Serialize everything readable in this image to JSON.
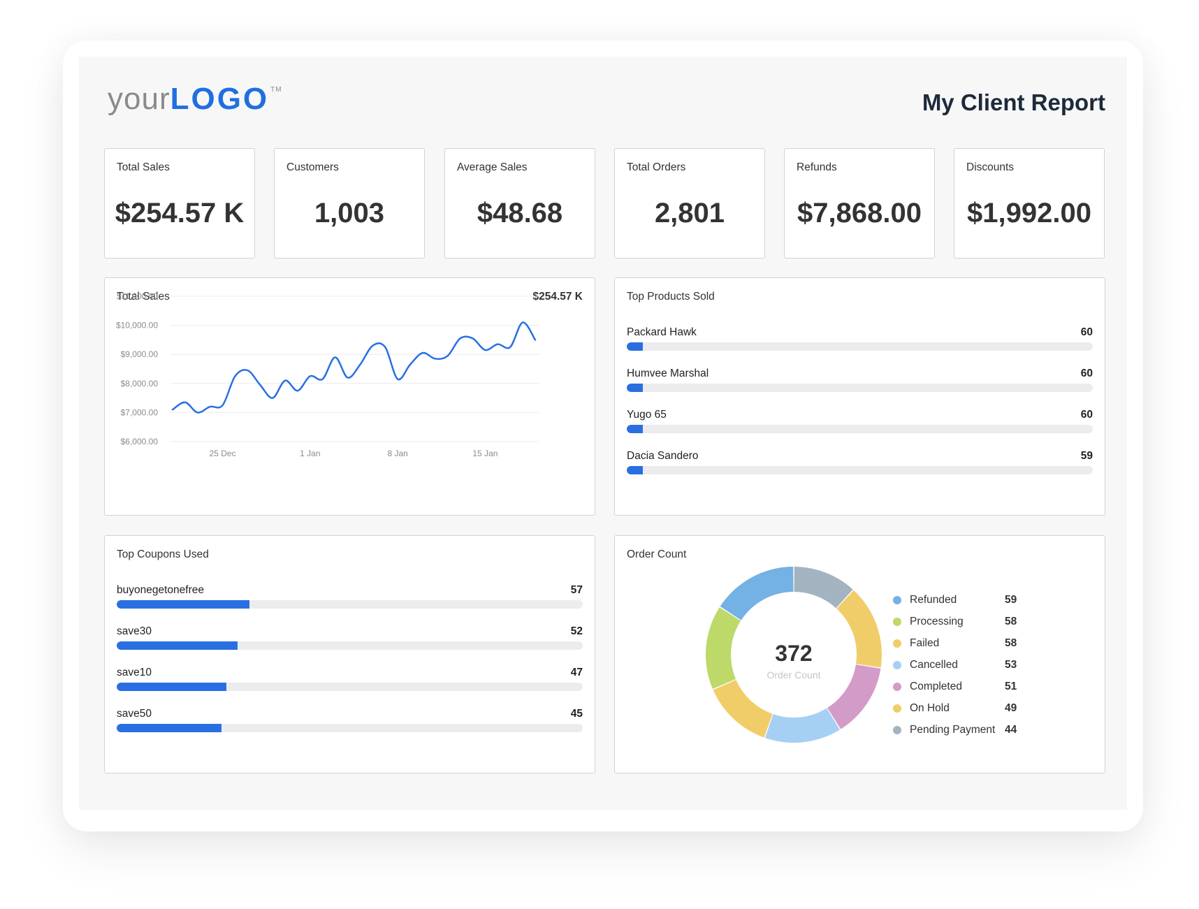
{
  "header": {
    "logo_your": "your",
    "logo_brand": "LOGO",
    "logo_tm": "TM",
    "title": "My Client Report"
  },
  "kpis": [
    {
      "label": "Total Sales",
      "value": "$254.57 K"
    },
    {
      "label": "Customers",
      "value": "1,003"
    },
    {
      "label": "Average Sales",
      "value": "$48.68"
    },
    {
      "label": "Total Orders",
      "value": "2,801"
    },
    {
      "label": "Refunds",
      "value": "$7,868.00"
    },
    {
      "label": "Discounts",
      "value": "$1,992.00"
    }
  ],
  "sales_panel": {
    "title": "Total Sales",
    "total": "$254.57 K"
  },
  "products_panel": {
    "title": "Top Products Sold",
    "items": [
      {
        "name": "Packard Hawk",
        "value": "60",
        "fill": 0.035
      },
      {
        "name": "Humvee Marshal",
        "value": "60",
        "fill": 0.035
      },
      {
        "name": "Yugo 65",
        "value": "60",
        "fill": 0.035
      },
      {
        "name": "Dacia Sandero",
        "value": "59",
        "fill": 0.035
      }
    ]
  },
  "coupons_panel": {
    "title": "Top Coupons Used",
    "items": [
      {
        "name": "buyonegetonefree",
        "value": "57",
        "fill": 0.285
      },
      {
        "name": "save30",
        "value": "52",
        "fill": 0.26
      },
      {
        "name": "save10",
        "value": "47",
        "fill": 0.235
      },
      {
        "name": "save50",
        "value": "45",
        "fill": 0.225
      }
    ]
  },
  "orders_panel": {
    "title": "Order Count",
    "center_value": "372",
    "center_label": "Order Count"
  },
  "chart_data": [
    {
      "type": "line",
      "title": "Total Sales",
      "ylim": [
        6000,
        11000
      ],
      "yticks": [
        "$11,000.00",
        "$10,000.00",
        "$9,000.00",
        "$8,000.00",
        "$7,000.00",
        "$6,000.00"
      ],
      "ytick_values": [
        11000,
        10000,
        9000,
        8000,
        7000,
        6000
      ],
      "xticks": [
        "25 Dec",
        "1 Jan",
        "8 Jan",
        "15 Jan"
      ],
      "xtick_index": [
        4,
        11,
        18,
        25
      ],
      "grid": true,
      "color": "#2a6fe2",
      "series": [
        {
          "values": [
            7100,
            7350,
            7000,
            7200,
            7250,
            8250,
            8450,
            7950,
            7500,
            8100,
            7750,
            8250,
            8150,
            8900,
            8200,
            8650,
            9300,
            9250,
            8150,
            8650,
            9050,
            8850,
            8950,
            9550,
            9550,
            9150,
            9350,
            9250,
            10100,
            9500
          ]
        }
      ]
    },
    {
      "type": "pie",
      "title": "Order Count",
      "categories": [
        "Refunded",
        "Processing",
        "Failed",
        "Cancelled",
        "Completed",
        "On Hold",
        "Pending Payment"
      ],
      "values": [
        59,
        58,
        58,
        53,
        51,
        49,
        44
      ],
      "colors": [
        "#74b1e4",
        "#bcd96a",
        "#f1cd6a",
        "#a6cff4",
        "#d39bc8",
        "#f1cd6a",
        "#a3b4c0"
      ],
      "slice_order": [
        "Pending Payment",
        "Failed",
        "Completed",
        "Cancelled",
        "On Hold",
        "Processing",
        "Refunded"
      ],
      "donut": true
    }
  ]
}
